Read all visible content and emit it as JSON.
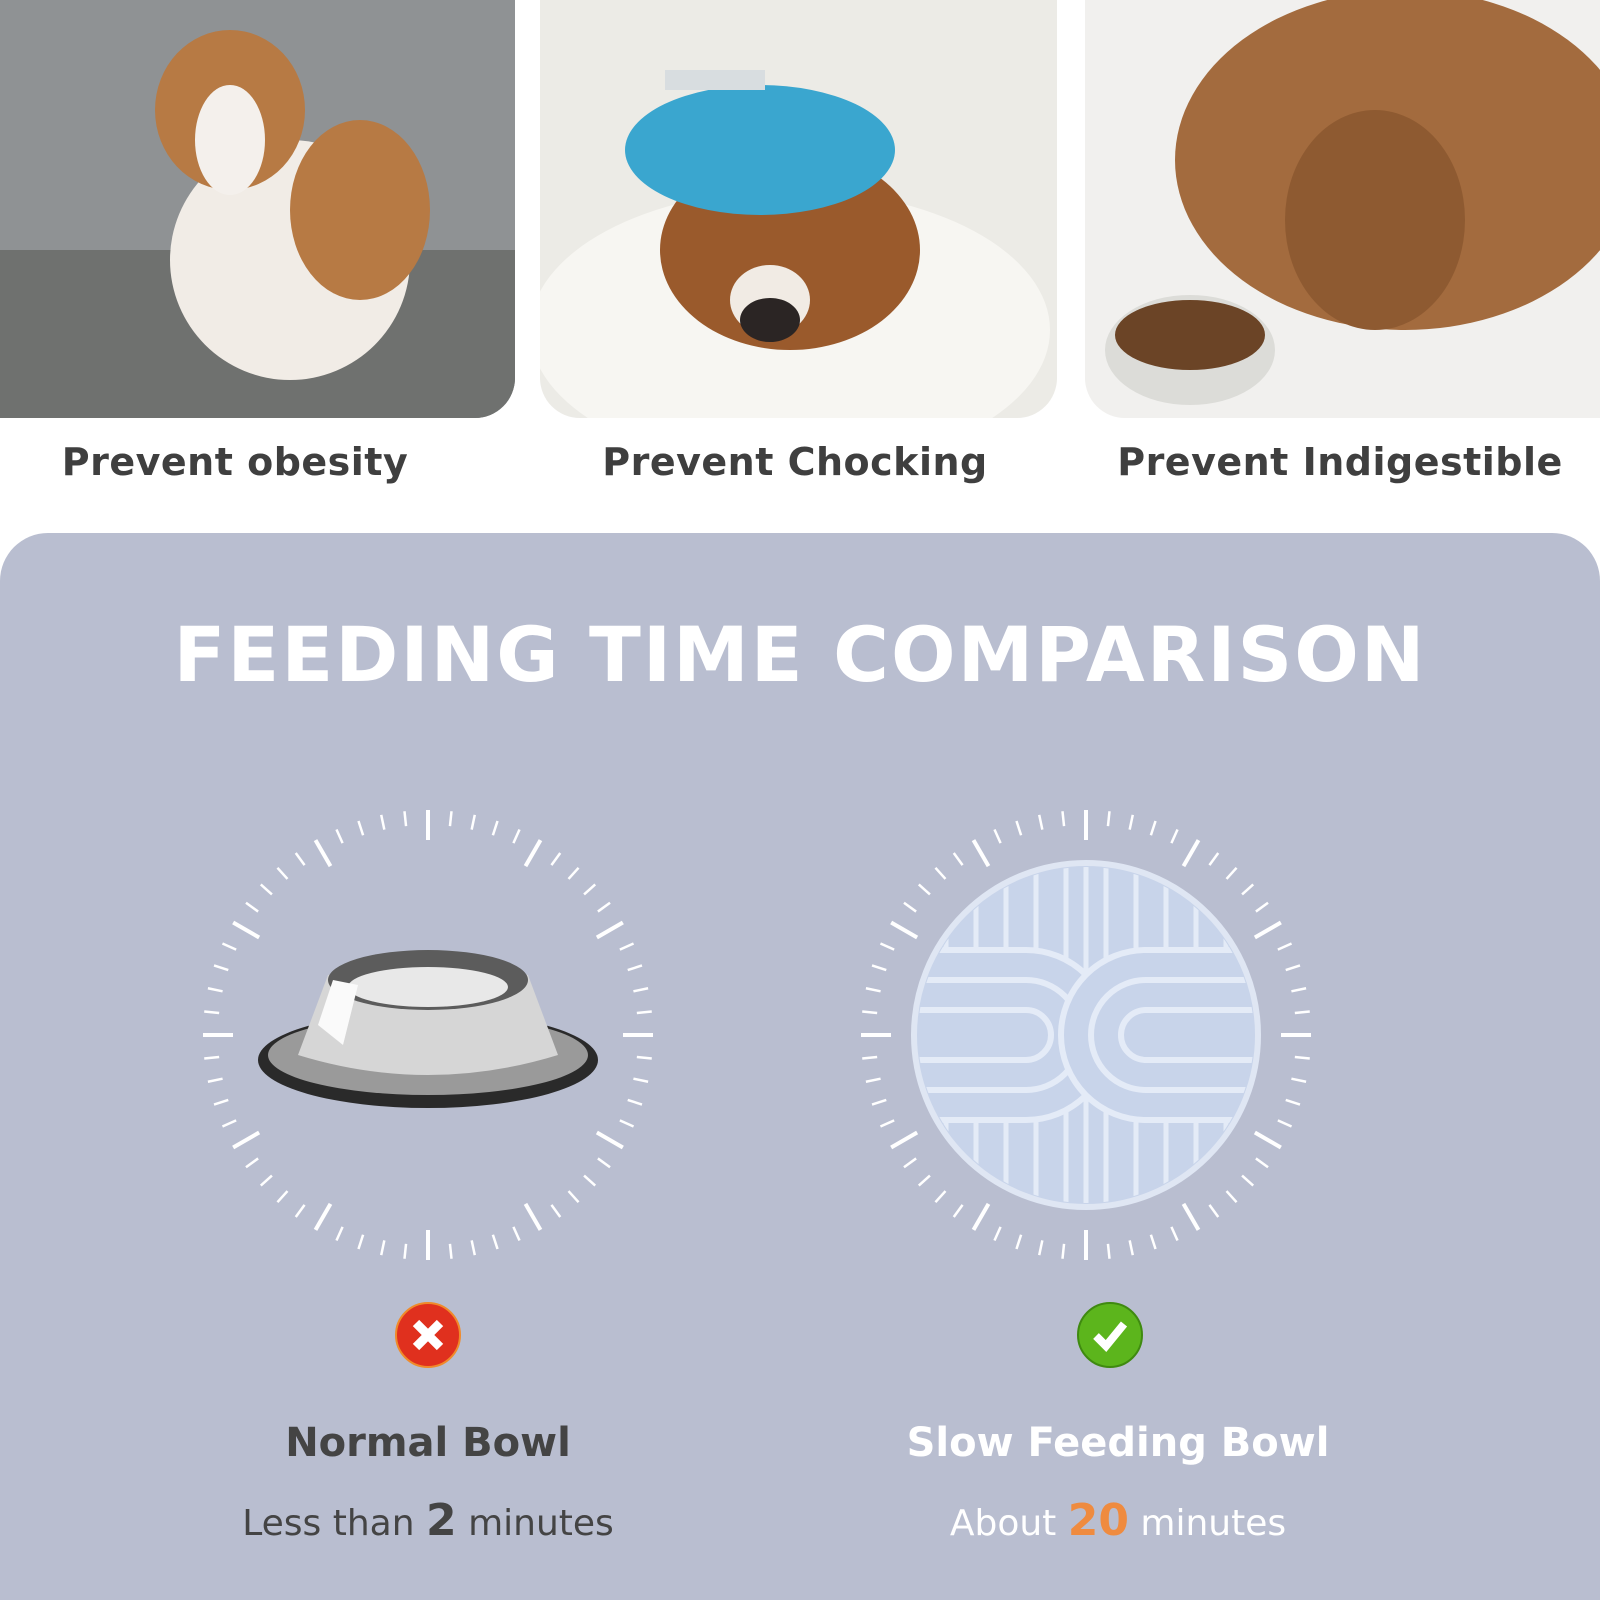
{
  "benefits": [
    {
      "label": "Prevent obesity",
      "icon": "overweight-beagle-photo"
    },
    {
      "label": "Prevent Chocking",
      "icon": "sick-dog-ice-pack-photo"
    },
    {
      "label": "Prevent Indigestible",
      "icon": "dog-with-kibble-bowl-photo"
    }
  ],
  "comparison": {
    "title": "FEEDING TIME COMPARISON",
    "normal": {
      "name": "Normal Bowl",
      "prefix": "Less than",
      "value": "2",
      "suffix": "minutes",
      "status": "cross-icon"
    },
    "slow": {
      "name": "Slow Feeding Bowl",
      "prefix": "About",
      "value": "20",
      "suffix": "minutes",
      "status": "check-icon"
    }
  },
  "colors": {
    "panel": "#b9bed0",
    "accent": "#ef8b3f",
    "dark_text": "#444444",
    "cross": "#e0301e",
    "check": "#5cb51c"
  }
}
